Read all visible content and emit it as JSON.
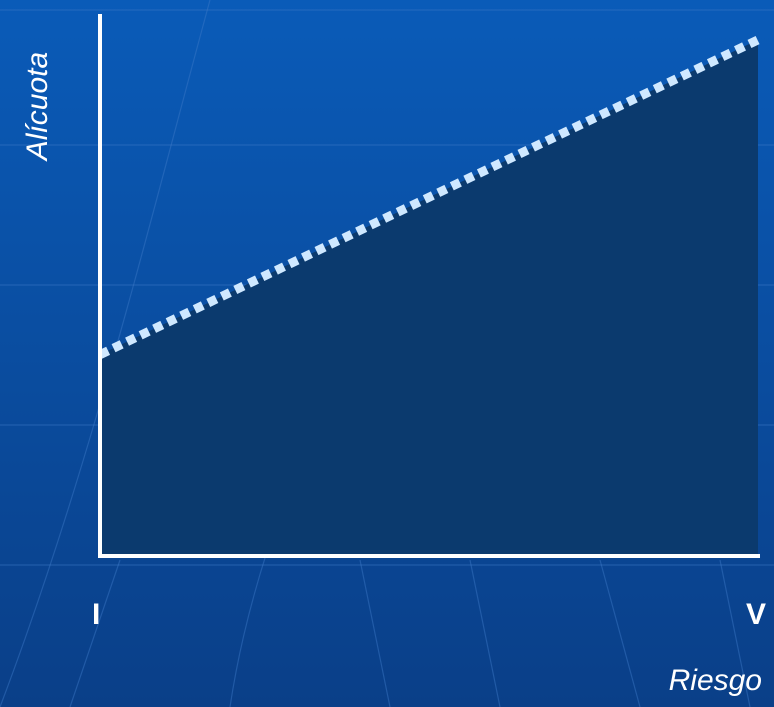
{
  "colors": {
    "background_top": "#0a5bb8",
    "background_bottom": "#0a3f88",
    "area_fill": "#0b3a6e",
    "axis": "#ffffff",
    "trend_line": "#cfe8ff",
    "label": "#ffffff"
  },
  "chart_data": {
    "type": "area",
    "title": "",
    "xlabel": "Riesgo",
    "ylabel": "Alícuota",
    "categories": [
      "I",
      "V"
    ],
    "x_tick_labels": [
      "I",
      "V"
    ],
    "values": [
      0.39,
      1.0
    ],
    "ylim": [
      0,
      1.05
    ],
    "line_style": "dotted",
    "grid": false,
    "legend": "none"
  }
}
